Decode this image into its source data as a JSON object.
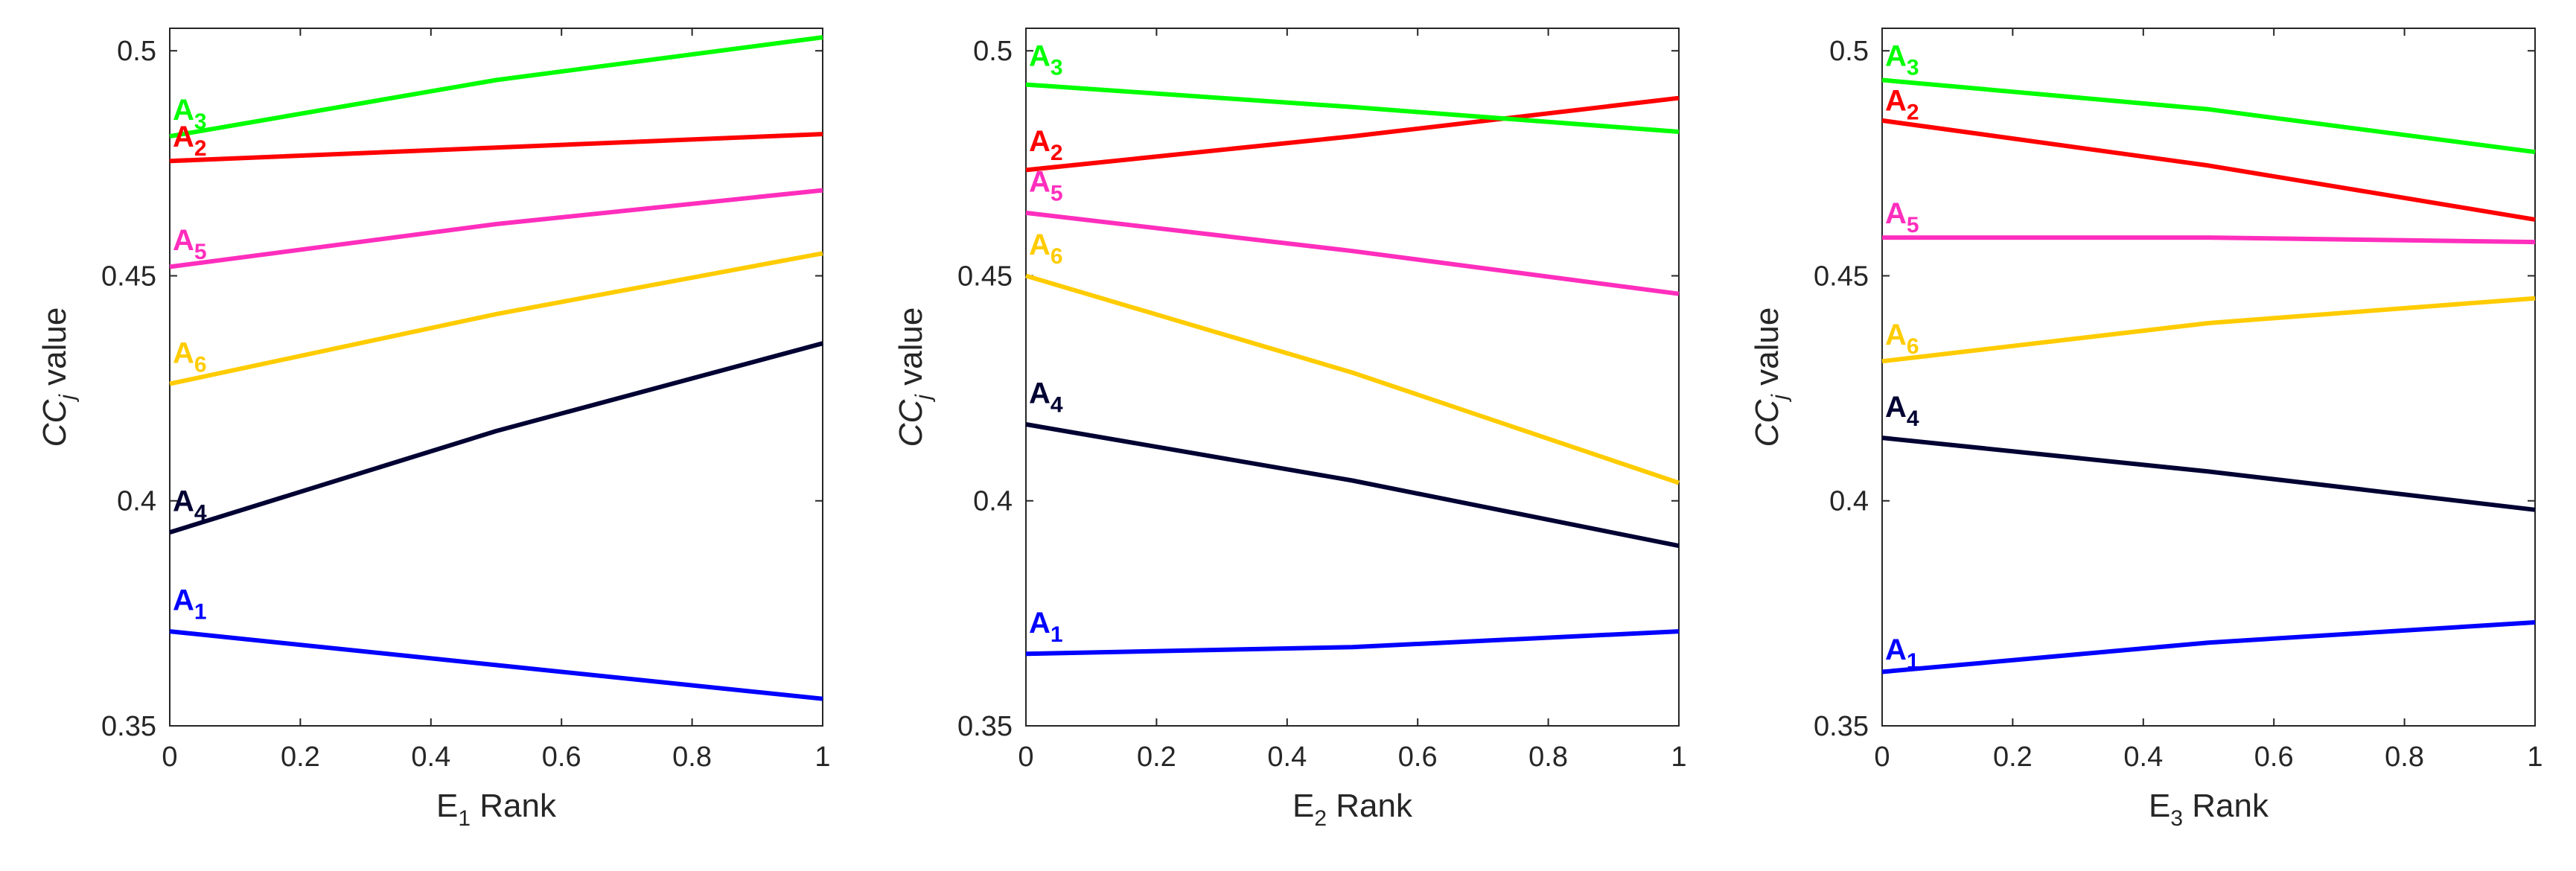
{
  "figure": {
    "colors": {
      "A1": "#0000ff",
      "A2": "#ff0000",
      "A3": "#00ff00",
      "A4": "#000033",
      "A5": "#ff2ebd",
      "A6": "#ffcc00",
      "axis": "#262626"
    }
  },
  "chart_data": [
    {
      "type": "line",
      "xlabel_main": "E",
      "xlabel_sub": "1",
      "xlabel_rest": " Rank",
      "ylabel_main": "CC",
      "ylabel_sub": "j",
      "ylabel_rest": " value",
      "xlim": [
        0,
        1
      ],
      "ylim": [
        0.35,
        0.505
      ],
      "xticks": [
        "0",
        "0.2",
        "0.4",
        "0.6",
        "0.8",
        "1"
      ],
      "yticks": [
        "0.35",
        "0.4",
        "0.45",
        "0.5"
      ],
      "series": [
        {
          "name": "A1",
          "main": "A",
          "sub": "1",
          "color_key": "A1",
          "x": [
            0,
            0.5,
            1
          ],
          "y": [
            0.371,
            0.3635,
            0.356
          ]
        },
        {
          "name": "A2",
          "main": "A",
          "sub": "2",
          "color_key": "A2",
          "x": [
            0,
            0.5,
            1
          ],
          "y": [
            0.4755,
            0.4785,
            0.4815
          ]
        },
        {
          "name": "A3",
          "main": "A",
          "sub": "3",
          "color_key": "A3",
          "x": [
            0,
            0.5,
            1
          ],
          "y": [
            0.481,
            0.4935,
            0.503
          ]
        },
        {
          "name": "A4",
          "main": "A",
          "sub": "4",
          "color_key": "A4",
          "x": [
            0,
            0.5,
            1
          ],
          "y": [
            0.393,
            0.4155,
            0.435
          ]
        },
        {
          "name": "A5",
          "main": "A",
          "sub": "5",
          "color_key": "A5",
          "x": [
            0,
            0.5,
            1
          ],
          "y": [
            0.452,
            0.4615,
            0.469
          ]
        },
        {
          "name": "A6",
          "main": "A",
          "sub": "6",
          "color_key": "A6",
          "x": [
            0,
            0.5,
            1
          ],
          "y": [
            0.426,
            0.4415,
            0.455
          ]
        }
      ],
      "labels": [
        {
          "series": "A1",
          "y": 0.378
        },
        {
          "series": "A2",
          "y": 0.481
        },
        {
          "series": "A3",
          "y": 0.487
        },
        {
          "series": "A4",
          "y": 0.4
        },
        {
          "series": "A5",
          "y": 0.458
        },
        {
          "series": "A6",
          "y": 0.433
        }
      ]
    },
    {
      "type": "line",
      "xlabel_main": "E",
      "xlabel_sub": "2",
      "xlabel_rest": " Rank",
      "ylabel_main": "CC",
      "ylabel_sub": "j",
      "ylabel_rest": " value",
      "xlim": [
        0,
        1
      ],
      "ylim": [
        0.35,
        0.505
      ],
      "xticks": [
        "0",
        "0.2",
        "0.4",
        "0.6",
        "0.8",
        "1"
      ],
      "yticks": [
        "0.35",
        "0.4",
        "0.45",
        "0.5"
      ],
      "series": [
        {
          "name": "A1",
          "main": "A",
          "sub": "1",
          "color_key": "A1",
          "x": [
            0,
            0.5,
            1
          ],
          "y": [
            0.366,
            0.3675,
            0.371
          ]
        },
        {
          "name": "A2",
          "main": "A",
          "sub": "2",
          "color_key": "A2",
          "x": [
            0,
            0.5,
            1
          ],
          "y": [
            0.4735,
            0.481,
            0.4895
          ]
        },
        {
          "name": "A3",
          "main": "A",
          "sub": "3",
          "color_key": "A3",
          "x": [
            0,
            0.5,
            1
          ],
          "y": [
            0.4925,
            0.4875,
            0.482
          ]
        },
        {
          "name": "A4",
          "main": "A",
          "sub": "4",
          "color_key": "A4",
          "x": [
            0,
            0.5,
            1
          ],
          "y": [
            0.417,
            0.4045,
            0.39
          ]
        },
        {
          "name": "A5",
          "main": "A",
          "sub": "5",
          "color_key": "A5",
          "x": [
            0,
            0.5,
            1
          ],
          "y": [
            0.464,
            0.4555,
            0.446
          ]
        },
        {
          "name": "A6",
          "main": "A",
          "sub": "6",
          "color_key": "A6",
          "x": [
            0,
            0.5,
            1
          ],
          "y": [
            0.45,
            0.4285,
            0.404
          ]
        }
      ],
      "labels": [
        {
          "series": "A1",
          "y": 0.373
        },
        {
          "series": "A2",
          "y": 0.48
        },
        {
          "series": "A3",
          "y": 0.499
        },
        {
          "series": "A4",
          "y": 0.424
        },
        {
          "series": "A5",
          "y": 0.471
        },
        {
          "series": "A6",
          "y": 0.457
        }
      ]
    },
    {
      "type": "line",
      "xlabel_main": "E",
      "xlabel_sub": "3",
      "xlabel_rest": " Rank",
      "ylabel_main": "CC",
      "ylabel_sub": "j",
      "ylabel_rest": " value",
      "xlim": [
        0,
        1
      ],
      "ylim": [
        0.35,
        0.505
      ],
      "xticks": [
        "0",
        "0.2",
        "0.4",
        "0.6",
        "0.8",
        "1"
      ],
      "yticks": [
        "0.35",
        "0.4",
        "0.45",
        "0.5"
      ],
      "series": [
        {
          "name": "A1",
          "main": "A",
          "sub": "1",
          "color_key": "A1",
          "x": [
            0,
            0.5,
            1
          ],
          "y": [
            0.362,
            0.3685,
            0.373
          ]
        },
        {
          "name": "A2",
          "main": "A",
          "sub": "2",
          "color_key": "A2",
          "x": [
            0,
            0.5,
            1
          ],
          "y": [
            0.4845,
            0.4745,
            0.4625
          ]
        },
        {
          "name": "A3",
          "main": "A",
          "sub": "3",
          "color_key": "A3",
          "x": [
            0,
            0.5,
            1
          ],
          "y": [
            0.4935,
            0.487,
            0.4775
          ]
        },
        {
          "name": "A4",
          "main": "A",
          "sub": "4",
          "color_key": "A4",
          "x": [
            0,
            0.5,
            1
          ],
          "y": [
            0.414,
            0.4065,
            0.398
          ]
        },
        {
          "name": "A5",
          "main": "A",
          "sub": "5",
          "color_key": "A5",
          "x": [
            0,
            0.5,
            1
          ],
          "y": [
            0.4585,
            0.4585,
            0.4575
          ]
        },
        {
          "name": "A6",
          "main": "A",
          "sub": "6",
          "color_key": "A6",
          "x": [
            0,
            0.5,
            1
          ],
          "y": [
            0.431,
            0.4395,
            0.445
          ]
        }
      ],
      "labels": [
        {
          "series": "A1",
          "y": 0.367
        },
        {
          "series": "A2",
          "y": 0.489
        },
        {
          "series": "A3",
          "y": 0.499
        },
        {
          "series": "A4",
          "y": 0.421
        },
        {
          "series": "A5",
          "y": 0.464
        },
        {
          "series": "A6",
          "y": 0.437
        }
      ]
    }
  ]
}
